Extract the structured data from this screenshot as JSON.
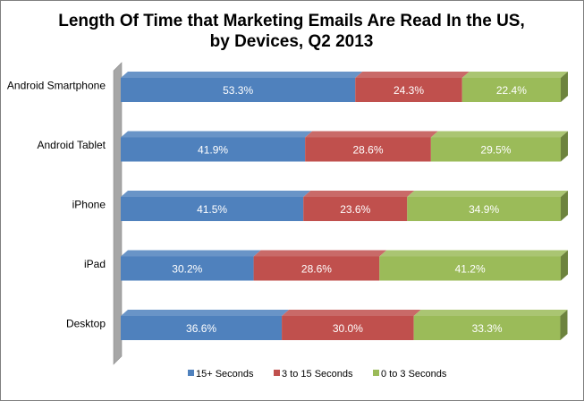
{
  "chart_data": {
    "type": "bar",
    "orientation": "horizontal",
    "stacked": true,
    "percent_stacked": true,
    "three_d": true,
    "title_lines": [
      "Length Of Time that Marketing Emails Are Read In the US,",
      "by Devices, Q2 2013"
    ],
    "categories": [
      "Android Smartphone",
      "Android Tablet",
      "iPhone",
      "iPad",
      "Desktop"
    ],
    "series": [
      {
        "name": "15+ Seconds",
        "color": "#4f81bd",
        "values": [
          53.3,
          41.9,
          41.5,
          30.2,
          36.6
        ],
        "labels": [
          "53.3%",
          "41.9%",
          "41.5%",
          "30.2%",
          "36.6%"
        ]
      },
      {
        "name": "3 to 15 Seconds",
        "color": "#c0504d",
        "values": [
          24.3,
          28.6,
          23.6,
          28.6,
          30.0
        ],
        "labels": [
          "24.3%",
          "28.6%",
          "23.6%",
          "28.6%",
          "30.0%"
        ]
      },
      {
        "name": "0 to 3 Seconds",
        "color": "#9bbb59",
        "values": [
          22.4,
          29.5,
          34.9,
          41.2,
          33.3
        ],
        "labels": [
          "22.4%",
          "29.5%",
          "34.9%",
          "41.2%",
          "33.3%"
        ]
      }
    ],
    "xlim": [
      0,
      100
    ],
    "grid": false,
    "legend_position": "bottom"
  }
}
